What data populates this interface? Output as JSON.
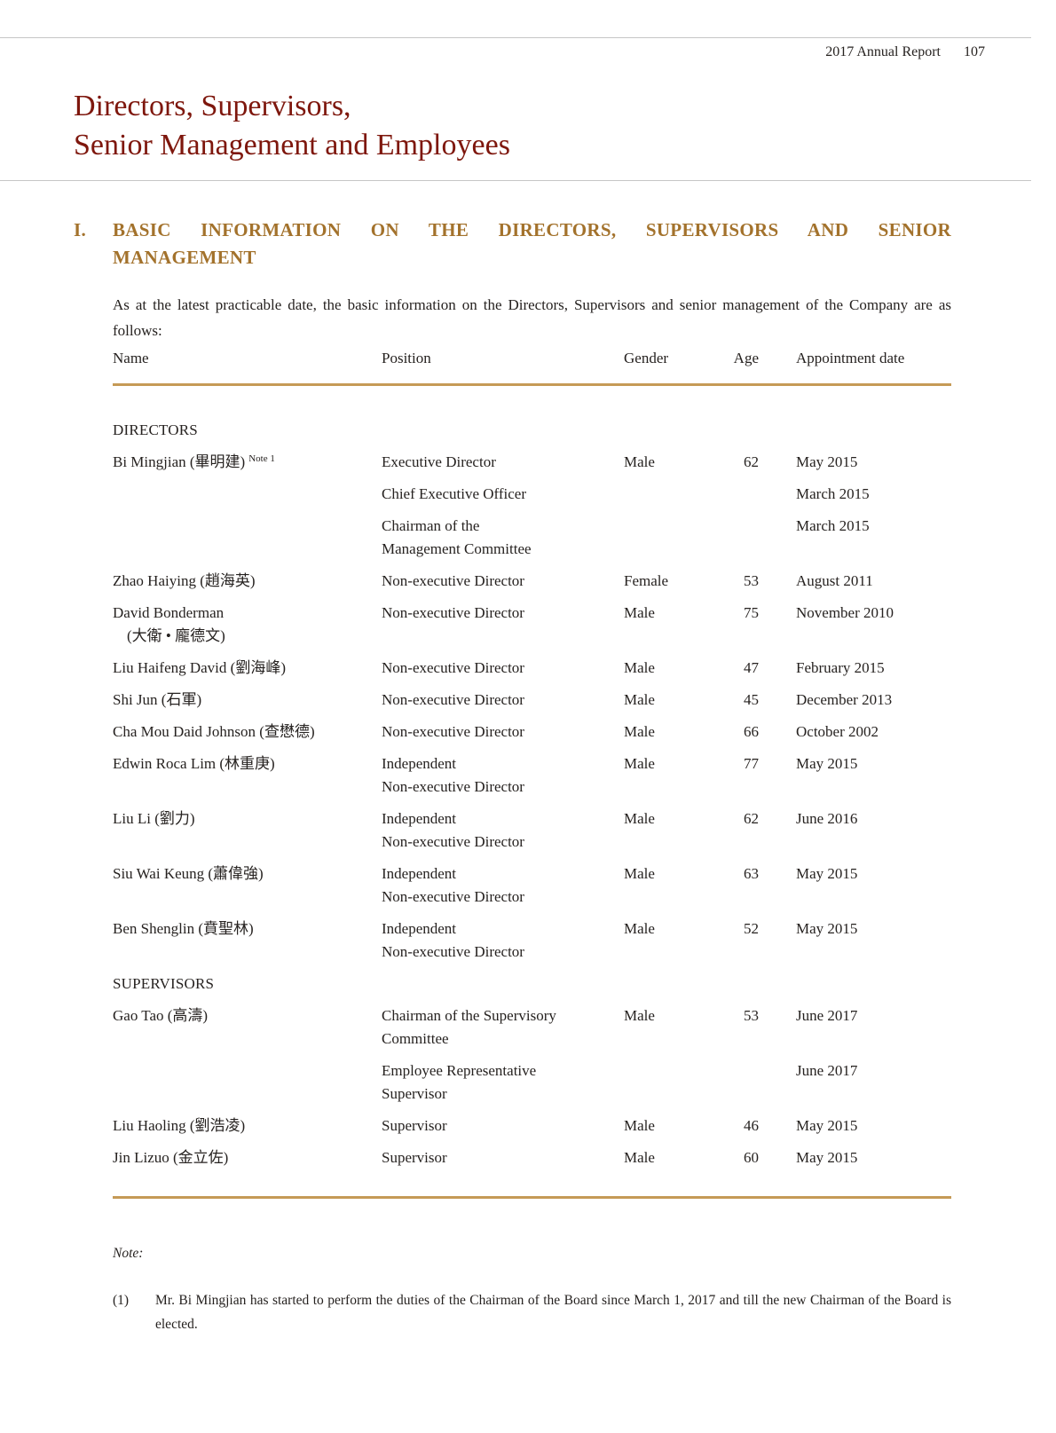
{
  "page": {
    "header_right": {
      "report": "2017 Annual Report",
      "page_number": "107"
    },
    "title_lines": [
      "Directors, Supervisors,",
      "Senior Management and Employees"
    ]
  },
  "section": {
    "numeral": "I.",
    "heading_lines": [
      "BASIC INFORMATION ON THE DIRECTORS, SUPERVISORS AND SENIOR",
      "MANAGEMENT"
    ],
    "intro": "As at the latest practicable date, the basic information on the Directors, Supervisors and senior management of the Company are as follows:"
  },
  "table": {
    "columns": [
      "Name",
      "Position",
      "Gender",
      "Age",
      "Appointment date"
    ],
    "sections": [
      {
        "label": "DIRECTORS",
        "rows": [
          {
            "name_lines": [
              "Bi Mingjian (畢明建)"
            ],
            "name_sup": "Note 1",
            "entries": [
              {
                "position_lines": [
                  "Executive Director"
                ],
                "gender": "Male",
                "age": "62",
                "date": "May 2015"
              },
              {
                "position_lines": [
                  "Chief Executive Officer"
                ],
                "gender": "",
                "age": "",
                "date": "March 2015"
              },
              {
                "position_lines": [
                  "Chairman of the",
                  "Management Committee"
                ],
                "gender": "",
                "age": "",
                "date": "March 2015"
              }
            ]
          },
          {
            "name_lines": [
              "Zhao Haiying (趙海英)"
            ],
            "entries": [
              {
                "position_lines": [
                  "Non-executive Director"
                ],
                "gender": "Female",
                "age": "53",
                "date": "August 2011"
              }
            ]
          },
          {
            "name_lines": [
              "David Bonderman",
              "(大衛 • 龐德文)"
            ],
            "entries": [
              {
                "position_lines": [
                  "Non-executive Director"
                ],
                "gender": "Male",
                "age": "75",
                "date": "November 2010"
              }
            ]
          },
          {
            "name_lines": [
              "Liu Haifeng David (劉海峰)"
            ],
            "entries": [
              {
                "position_lines": [
                  "Non-executive Director"
                ],
                "gender": "Male",
                "age": "47",
                "date": "February 2015"
              }
            ]
          },
          {
            "name_lines": [
              "Shi Jun (石軍)"
            ],
            "entries": [
              {
                "position_lines": [
                  "Non-executive Director"
                ],
                "gender": "Male",
                "age": "45",
                "date": "December 2013"
              }
            ]
          },
          {
            "name_lines": [
              "Cha Mou Daid Johnson (查懋德)"
            ],
            "entries": [
              {
                "position_lines": [
                  "Non-executive Director"
                ],
                "gender": "Male",
                "age": "66",
                "date": "October 2002"
              }
            ]
          },
          {
            "name_lines": [
              "Edwin Roca Lim (林重庚)"
            ],
            "entries": [
              {
                "position_lines": [
                  "Independent",
                  "Non-executive Director"
                ],
                "gender": "Male",
                "age": "77",
                "date": "May 2015"
              }
            ]
          },
          {
            "name_lines": [
              "Liu Li (劉力)"
            ],
            "entries": [
              {
                "position_lines": [
                  "Independent",
                  "Non-executive Director"
                ],
                "gender": "Male",
                "age": "62",
                "date": "June 2016"
              }
            ]
          },
          {
            "name_lines": [
              "Siu Wai Keung (蕭偉強)"
            ],
            "entries": [
              {
                "position_lines": [
                  "Independent",
                  "Non-executive Director"
                ],
                "gender": "Male",
                "age": "63",
                "date": "May 2015"
              }
            ]
          },
          {
            "name_lines": [
              "Ben Shenglin (賁聖林)"
            ],
            "entries": [
              {
                "position_lines": [
                  "Independent",
                  "Non-executive Director"
                ],
                "gender": "Male",
                "age": "52",
                "date": "May 2015"
              }
            ]
          }
        ]
      },
      {
        "label": "SUPERVISORS",
        "rows": [
          {
            "name_lines": [
              "Gao Tao (高濤)"
            ],
            "entries": [
              {
                "position_lines": [
                  "Chairman of the Supervisory",
                  "Committee"
                ],
                "gender": "Male",
                "age": "53",
                "date": "June 2017"
              },
              {
                "position_lines": [
                  "Employee Representative",
                  "Supervisor"
                ],
                "gender": "",
                "age": "",
                "date": "June 2017"
              }
            ]
          },
          {
            "name_lines": [
              "Liu Haoling (劉浩凌)"
            ],
            "entries": [
              {
                "position_lines": [
                  "Supervisor"
                ],
                "gender": "Male",
                "age": "46",
                "date": "May 2015"
              }
            ]
          },
          {
            "name_lines": [
              "Jin Lizuo (金立佐)"
            ],
            "entries": [
              {
                "position_lines": [
                  "Supervisor"
                ],
                "gender": "Male",
                "age": "60",
                "date": "May 2015"
              }
            ]
          }
        ]
      }
    ]
  },
  "note": {
    "label": "Note:",
    "items": [
      {
        "marker": "(1)",
        "text": "Mr. Bi Mingjian has started to perform the duties of the Chairman of the Board since March 1, 2017 and till the new Chairman of the Board is elected."
      }
    ]
  },
  "colors": {
    "title_maroon": "#7e170d",
    "heading_gold": "#a3722c",
    "table_rule_gold": "#c59a56",
    "page_rule_gray": "#c6c6c6",
    "body_text": "#262220"
  }
}
